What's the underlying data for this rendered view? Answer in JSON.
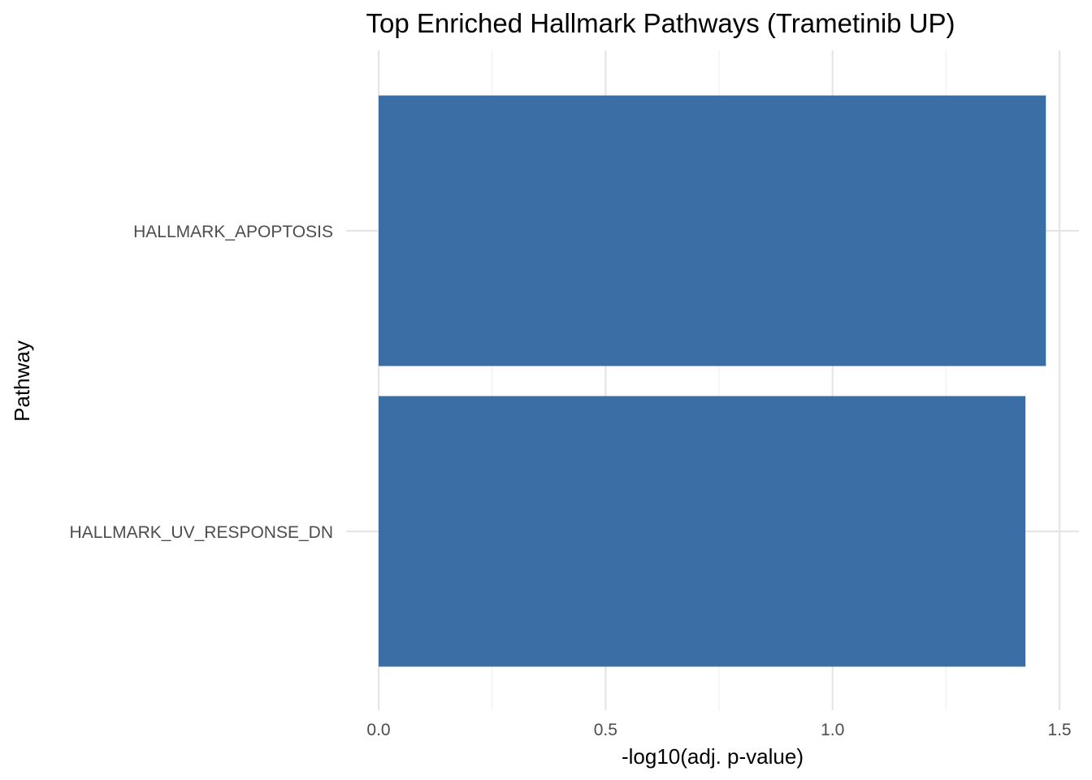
{
  "chart_data": {
    "type": "bar",
    "orientation": "horizontal",
    "title": "Top Enriched Hallmark Pathways (Trametinib UP)",
    "xlabel": "-log10(adj. p-value)",
    "ylabel": "Pathway",
    "categories": [
      "HALLMARK_APOPTOSIS",
      "HALLMARK_UV_RESPONSE_DN"
    ],
    "values": [
      1.47,
      1.425
    ],
    "xlim": [
      0,
      1.5
    ],
    "xticks": [
      0,
      0.5,
      1.0,
      1.5
    ],
    "xtick_labels": [
      "0.0",
      "0.5",
      "1.0",
      "1.5"
    ],
    "grid": true,
    "legend": "none",
    "bar_color": "#3a6ea5"
  }
}
